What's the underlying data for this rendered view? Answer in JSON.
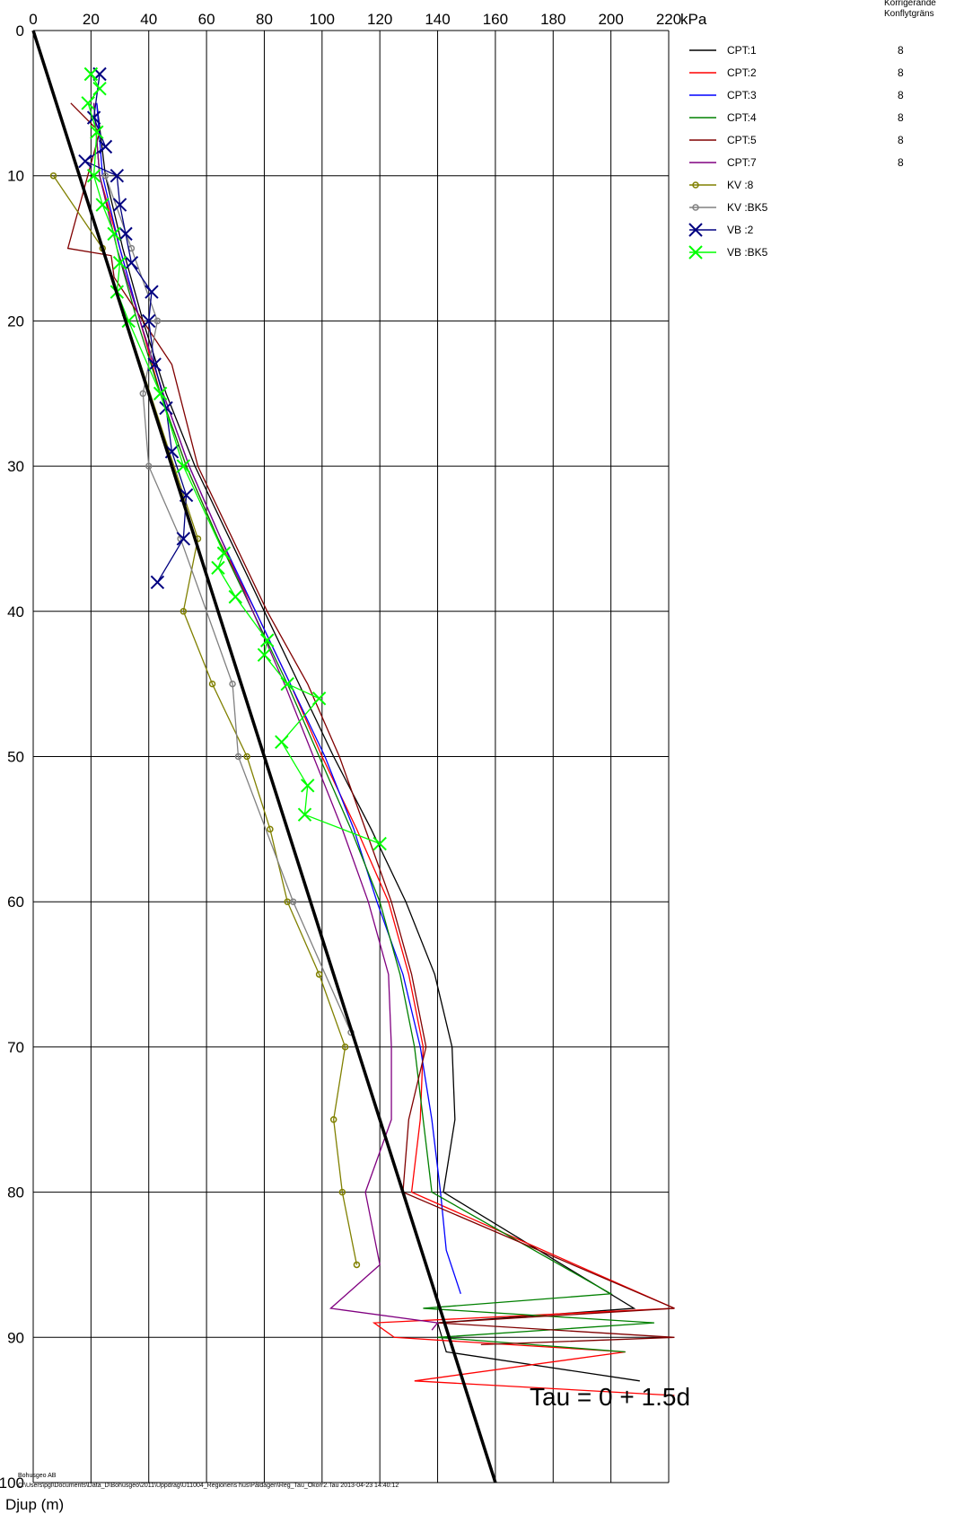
{
  "chart_data": {
    "type": "line",
    "x_unit": "kPa",
    "y_label": "Djup (m)",
    "xlim": [
      0,
      220
    ],
    "ylim": [
      0,
      100
    ],
    "y_inverted": true,
    "x_axis_position": "top",
    "grid": true,
    "x_ticks": [
      0,
      20,
      40,
      60,
      80,
      100,
      120,
      140,
      160,
      180,
      200,
      220
    ],
    "y_ticks": [
      0,
      10,
      20,
      30,
      40,
      50,
      60,
      70,
      80,
      90,
      100
    ],
    "legend_position": "top-right",
    "header_lines": [
      "Korrigerande",
      "Konflytgräns"
    ],
    "formula_label": "Tau = 0 + 1.5d",
    "trend_line": {
      "x": [
        0,
        160
      ],
      "y": [
        0,
        100
      ],
      "color": "#000000"
    },
    "series": [
      {
        "name": "CPT:1",
        "type": "line",
        "color": "#000000",
        "right_value": "8",
        "x": [
          22,
          25,
          31,
          38,
          46,
          56,
          68,
          80,
          92,
          104,
          117,
          129,
          139,
          145,
          146,
          142,
          208,
          140,
          143,
          210
        ],
        "y": [
          5,
          10,
          15,
          20,
          25,
          30,
          35,
          40,
          45,
          50,
          55,
          60,
          65,
          70,
          75,
          80,
          88,
          89,
          91,
          93
        ]
      },
      {
        "name": "CPT:2",
        "type": "line",
        "color": "#ff0000",
        "right_value": "8",
        "x": [
          21,
          23,
          30,
          37,
          44,
          53,
          64,
          77,
          89,
          100,
          112,
          123,
          130,
          135,
          134,
          131,
          222,
          118,
          125,
          205,
          132,
          222
        ],
        "y": [
          5,
          10,
          15,
          20,
          25,
          30,
          35,
          40,
          45,
          50,
          55,
          60,
          65,
          70,
          75,
          80,
          88,
          89,
          90,
          91,
          93,
          94
        ]
      },
      {
        "name": "CPT:3",
        "type": "line",
        "color": "#0000ff",
        "right_value": "8",
        "x": [
          22,
          24,
          30,
          37,
          45,
          54,
          65,
          77,
          89,
          101,
          111,
          119,
          128,
          134,
          138,
          141,
          143,
          148
        ],
        "y": [
          5,
          10,
          15,
          20,
          25,
          30,
          35,
          40,
          45,
          50,
          55,
          60,
          65,
          70,
          75,
          80,
          84,
          87
        ]
      },
      {
        "name": "CPT:4",
        "type": "line",
        "color": "#008000",
        "right_value": "8",
        "x": [
          21,
          23,
          29,
          36,
          44,
          53,
          64,
          76,
          88,
          99,
          110,
          120,
          127,
          132,
          135,
          138,
          200,
          135,
          215,
          140,
          205
        ],
        "y": [
          5,
          10,
          15,
          20,
          25,
          30,
          35,
          40,
          45,
          50,
          55,
          60,
          65,
          70,
          75,
          80,
          87,
          88,
          89,
          90,
          91
        ]
      },
      {
        "name": "CPT:5",
        "type": "line",
        "color": "#800000",
        "right_value": "8",
        "x": [
          13,
          23,
          12,
          27,
          28,
          38,
          48,
          57,
          69,
          81,
          95,
          106,
          115,
          124,
          131,
          136,
          130,
          128,
          222,
          140,
          222,
          155
        ],
        "y": [
          5,
          7,
          15,
          15.5,
          17,
          20,
          23,
          30,
          35,
          40,
          45,
          50,
          55,
          60,
          65,
          70,
          75,
          80,
          88,
          89,
          90,
          90.5
        ]
      },
      {
        "name": "CPT:7",
        "type": "line",
        "color": "#800080",
        "right_value": "8",
        "x": [
          21,
          23,
          29,
          37,
          45,
          54,
          65,
          76,
          87,
          97,
          107,
          116,
          123,
          124,
          124,
          115,
          120,
          103,
          140,
          138
        ],
        "y": [
          5,
          10,
          15,
          20,
          25,
          30,
          35,
          40,
          45,
          50,
          55,
          60,
          65,
          70,
          75,
          80,
          85,
          88,
          89,
          89.5
        ]
      },
      {
        "name": "KV :8",
        "type": "line-marker",
        "marker": "circle",
        "color": "#808000",
        "right_value": "",
        "x": [
          7,
          24,
          57,
          52,
          62,
          74,
          82,
          88,
          99,
          108,
          104,
          107,
          112
        ],
        "y": [
          10,
          15,
          35,
          40,
          45,
          50,
          55,
          60,
          65,
          70,
          75,
          80,
          85
        ]
      },
      {
        "name": "KV :BK5",
        "type": "line-marker",
        "marker": "circle",
        "color": "#808080",
        "right_value": "",
        "x": [
          25,
          34,
          43,
          38,
          40,
          51,
          69,
          71,
          90,
          110
        ],
        "y": [
          10,
          15,
          20,
          25,
          30,
          35,
          45,
          50,
          60,
          69
        ]
      },
      {
        "name": "VB :2",
        "type": "line-marker",
        "marker": "x",
        "color": "#000080",
        "right_value": "",
        "x": [
          23,
          21,
          25,
          18,
          29,
          30,
          32,
          34,
          41,
          40,
          42,
          46,
          48,
          53,
          52,
          43
        ],
        "y": [
          3,
          6,
          8,
          9,
          10,
          12,
          14,
          16,
          18,
          20,
          23,
          26,
          29,
          32,
          35,
          38
        ]
      },
      {
        "name": "VB :BK5",
        "type": "line-marker",
        "marker": "x",
        "color": "#00ff00",
        "right_value": "",
        "x": [
          20,
          23,
          19,
          22,
          21,
          24,
          28,
          30,
          29,
          33,
          44,
          52,
          66,
          64,
          70,
          81,
          80,
          88,
          99,
          86,
          95,
          94,
          120
        ],
        "y": [
          3,
          4,
          5,
          7,
          10,
          12,
          14,
          16,
          18,
          20,
          25,
          30,
          36,
          37,
          39,
          42,
          43,
          45,
          46,
          49,
          52,
          54,
          56
        ]
      }
    ]
  },
  "footer": {
    "company": "Bohusgeo AB",
    "path": "C:\\Users\\pgl\\Documents\\Data_D\\Bohusgeo\\2011\\Uppdrag\\U11004_Regionens hus\\Påldagen\\Reg_Tau_Okorr2.Tau  2013-04-23 14:40:12"
  }
}
